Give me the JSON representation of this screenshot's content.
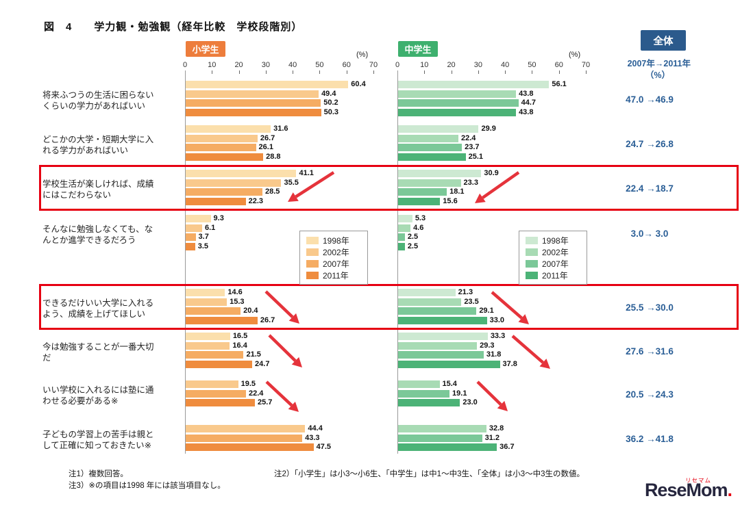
{
  "title": "図　4　　学力観・勉強観（経年比較　学校段階別）",
  "colors": {
    "overall_badge": "#2B5A8C",
    "overall_text": "#2A5E96",
    "highlight_red": "#E60012",
    "arrow_red": "#E5333B"
  },
  "panels": {
    "elementary": {
      "label": "小学生",
      "header_color": "#ED7D3C",
      "axis_unit": "(%)",
      "colors": [
        "#FBDFAC",
        "#F9C98C",
        "#F5AC63",
        "#EF8C3E"
      ]
    },
    "junior": {
      "label": "中学生",
      "header_color": "#3EB06E",
      "axis_unit": "(%)",
      "colors": [
        "#CDE9D2",
        "#A8DBB4",
        "#7BC898",
        "#4CB377"
      ]
    }
  },
  "overall": {
    "badge": "全体",
    "subtitle": "2007年→2011年",
    "unit": "（%）"
  },
  "legend": {
    "years": [
      "1998年",
      "2002年",
      "2007年",
      "2011年"
    ]
  },
  "chart_data": {
    "type": "bar",
    "axis": {
      "ticks": [
        0,
        10,
        20,
        30,
        40,
        50,
        60,
        70
      ],
      "max": 70,
      "unit": "(%)"
    },
    "series_years": [
      "1998年",
      "2002年",
      "2007年",
      "2011年"
    ],
    "rows": [
      {
        "label": "将来ふつうの生活に困らない\nくらいの学力があればいい",
        "elementary": [
          60.4,
          49.4,
          50.2,
          50.3
        ],
        "junior": [
          56.1,
          43.8,
          44.7,
          43.8
        ],
        "overall": "47.0 →46.9",
        "highlight": false,
        "arrow": null
      },
      {
        "label": "どこかの大学・短期大学に入\nれる学力があればいい",
        "elementary": [
          31.6,
          26.7,
          26.1,
          28.8
        ],
        "junior": [
          29.9,
          22.4,
          23.7,
          25.1
        ],
        "overall": "24.7 →26.8",
        "highlight": false,
        "arrow": null
      },
      {
        "label": "学校生活が楽しければ、成績\nにはこだわらない",
        "elementary": [
          41.1,
          35.5,
          28.5,
          22.3
        ],
        "junior": [
          30.9,
          23.3,
          18.1,
          15.6
        ],
        "overall": "22.4 →18.7",
        "highlight": true,
        "arrow": "decrease"
      },
      {
        "label": "そんなに勉強しなくても、な\nんとか進学できるだろう",
        "elementary": [
          9.3,
          6.1,
          3.7,
          3.5
        ],
        "junior": [
          5.3,
          4.6,
          2.5,
          2.5
        ],
        "overall": "3.0→ 3.0",
        "highlight": false,
        "arrow": null
      },
      {
        "label": "できるだけいい大学に入れる\nよう、成績を上げてほしい",
        "elementary": [
          14.6,
          15.3,
          20.4,
          26.7
        ],
        "junior": [
          21.3,
          23.5,
          29.1,
          33.0
        ],
        "overall": "25.5 →30.0",
        "highlight": true,
        "arrow": "increase"
      },
      {
        "label": "今は勉強することが一番大切\nだ",
        "elementary": [
          16.5,
          16.4,
          21.5,
          24.7
        ],
        "junior": [
          33.3,
          29.3,
          31.8,
          37.8
        ],
        "overall": "27.6 →31.6",
        "highlight": false,
        "arrow": "increase"
      },
      {
        "label": "いい学校に入れるには塾に通\nわせる必要がある※",
        "elementary": [
          null,
          19.5,
          22.4,
          25.7
        ],
        "junior": [
          null,
          15.4,
          19.1,
          23.0
        ],
        "overall": "20.5 →24.3",
        "highlight": false,
        "arrow": "increase"
      },
      {
        "label": "子どもの学習上の苦手は親と\nして正確に知っておきたい※",
        "elementary": [
          null,
          44.4,
          43.3,
          47.5
        ],
        "junior": [
          null,
          32.8,
          31.2,
          36.7
        ],
        "overall": "36.2 →41.8",
        "highlight": false,
        "arrow": null
      }
    ]
  },
  "notes": {
    "note1": "注1）複数回答。",
    "note3": "注3）※の項目は1998 年には該当項目なし。",
    "note2": "注2）「小学生」は小3～小6生、「中学生」は中1～中3生、「全体」は小3～中3生の数値。"
  },
  "logo": {
    "text": "ReseMom",
    "ruby": "リセマム"
  }
}
